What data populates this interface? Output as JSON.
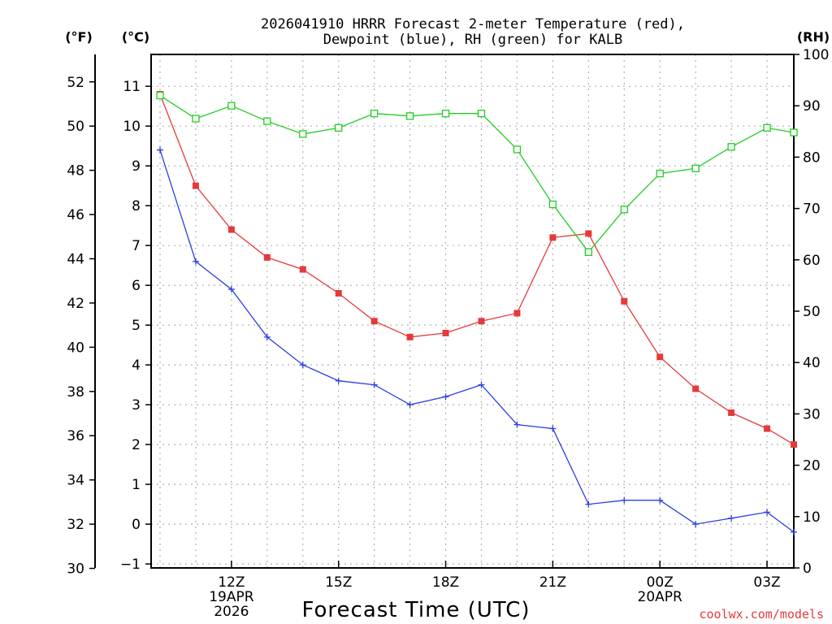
{
  "chart_data": {
    "type": "line",
    "title_lines": [
      "2026041910 HRRR Forecast 2-meter Temperature (red),",
      "Dewpoint (blue), RH (green) for KALB"
    ],
    "left_outer_unit": "(°F)",
    "left_inner_unit": "(°C)",
    "right_unit": "(RH)",
    "xlabel": "Forecast Time (UTC)",
    "credit": "coolwx.com/models",
    "x_range": [
      9.75,
      27.75
    ],
    "celsius_range": [
      -1.1,
      11.8
    ],
    "fahrenheit_range": [
      30,
      53
    ],
    "rh_range": [
      0,
      100
    ],
    "x_ticks": [
      {
        "hour": 12,
        "lines": [
          "12Z",
          "19APR",
          "2026"
        ]
      },
      {
        "hour": 15,
        "lines": [
          "15Z"
        ]
      },
      {
        "hour": 18,
        "lines": [
          "18Z"
        ]
      },
      {
        "hour": 21,
        "lines": [
          "21Z"
        ]
      },
      {
        "hour": 24,
        "lines": [
          "00Z",
          "20APR"
        ]
      },
      {
        "hour": 27,
        "lines": [
          "03Z"
        ]
      }
    ],
    "celsius_ticks": [
      -1,
      0,
      1,
      2,
      3,
      4,
      5,
      6,
      7,
      8,
      9,
      10,
      11
    ],
    "fahrenheit_ticks": [
      30,
      32,
      34,
      36,
      38,
      40,
      42,
      44,
      46,
      48,
      50,
      52
    ],
    "rh_ticks": [
      0,
      10,
      20,
      30,
      40,
      50,
      60,
      70,
      80,
      90,
      100
    ],
    "hours": [
      10,
      11,
      12,
      13,
      14,
      15,
      16,
      17,
      18,
      19,
      20,
      21,
      22,
      23,
      24,
      25,
      26,
      27,
      27.75
    ],
    "series": [
      {
        "name": "Temperature",
        "unit": "C",
        "color": "#e53a3a",
        "marker": "filled-square",
        "values": [
          10.8,
          8.5,
          7.4,
          6.7,
          6.4,
          5.8,
          5.1,
          4.7,
          4.8,
          5.1,
          5.3,
          7.2,
          7.3,
          5.6,
          4.2,
          3.4,
          2.8,
          2.4,
          2.0
        ]
      },
      {
        "name": "Dewpoint",
        "unit": "C",
        "color": "#2a3fe0",
        "marker": "plus",
        "values": [
          9.4,
          6.6,
          5.9,
          4.7,
          4.0,
          3.6,
          3.5,
          3.0,
          3.2,
          3.5,
          2.5,
          2.4,
          0.5,
          0.6,
          0.6,
          0.0,
          0.15,
          0.3,
          -0.2
        ]
      },
      {
        "name": "RH",
        "unit": "%",
        "color": "#22cc22",
        "marker": "open-square",
        "values": [
          92,
          87.5,
          90,
          87,
          84.5,
          85.7,
          88.5,
          88,
          88.5,
          88.5,
          81.5,
          70.8,
          61.5,
          69.8,
          76.8,
          77.8,
          82,
          85.7,
          84.8
        ]
      }
    ],
    "grid": true,
    "legend": "none (series identified in title)"
  }
}
